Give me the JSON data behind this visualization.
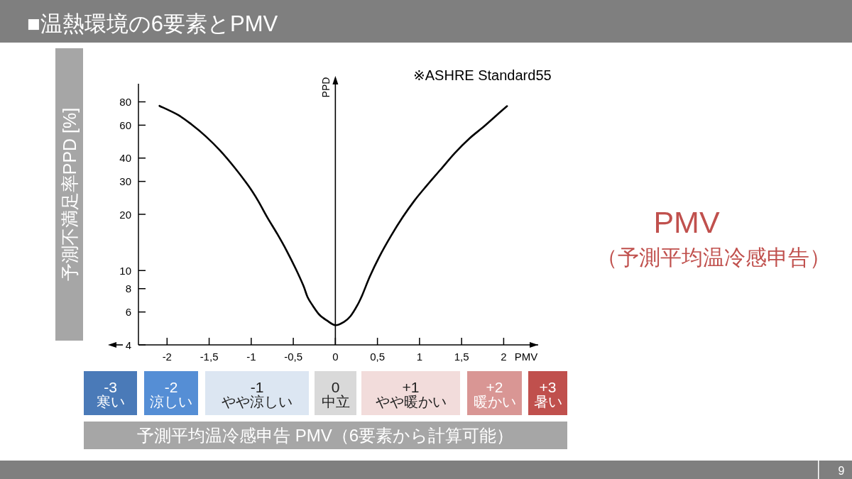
{
  "chart_data": {
    "type": "line",
    "title": "■温熱環境の6要素とPMV",
    "xlabel": "PMV",
    "ylabel": "PPD",
    "x": [
      -2.09,
      -1.87,
      -1.71,
      -1.54,
      -1.37,
      -1.2,
      -1.03,
      -0.92,
      -0.81,
      -0.69,
      -0.58,
      -0.47,
      -0.38,
      -0.33,
      -0.27,
      -0.19,
      -0.1,
      0,
      0.1,
      0.18,
      0.26,
      0.32,
      0.41,
      0.52,
      0.66,
      0.8,
      0.94,
      1.08,
      1.25,
      1.42,
      1.59,
      1.76,
      1.92,
      2.04
    ],
    "values": [
      76.1,
      68.1,
      60.6,
      52.3,
      43.9,
      35.7,
      28.3,
      23.7,
      19.3,
      15.7,
      12.8,
      10.2,
      8.3,
      7.2,
      6.5,
      5.8,
      5.4,
      5.1,
      5.3,
      5.7,
      6.5,
      7.4,
      9.3,
      11.8,
      15.3,
      19.3,
      23.7,
      28.3,
      34.7,
      42.6,
      50.8,
      58.8,
      68.1,
      75.9
    ],
    "color": "#000000",
    "log": "y",
    "xlim": [
      -2.34,
      2.41
    ],
    "ylim": [
      4,
      100
    ],
    "xticks": [
      -2,
      {
        "value": -1.5,
        "label": "-1,5"
      },
      -1,
      {
        "value": -0.5,
        "label": "-0,5"
      },
      0,
      {
        "value": 0.5,
        "label": "0,5"
      },
      1,
      {
        "value": 1.5,
        "label": "1,5"
      },
      2
    ],
    "yticks": [
      4,
      6,
      8,
      10,
      20,
      30,
      40,
      60,
      80
    ],
    "annotations": [
      "※ASHRE Standard55",
      "予測不満足率PPD [%]",
      "PMV",
      "（予測平均温冷感申告）",
      "-3",
      "寒い",
      "-2",
      "涼しい",
      "-1",
      "やや涼しい",
      "0",
      "中立",
      "+1",
      "やや暖かい",
      "+2",
      "暖かい",
      "+3",
      "暑い",
      "予測平均温冷感申告 PMV（6要素から計算可能）",
      "9"
    ]
  }
}
